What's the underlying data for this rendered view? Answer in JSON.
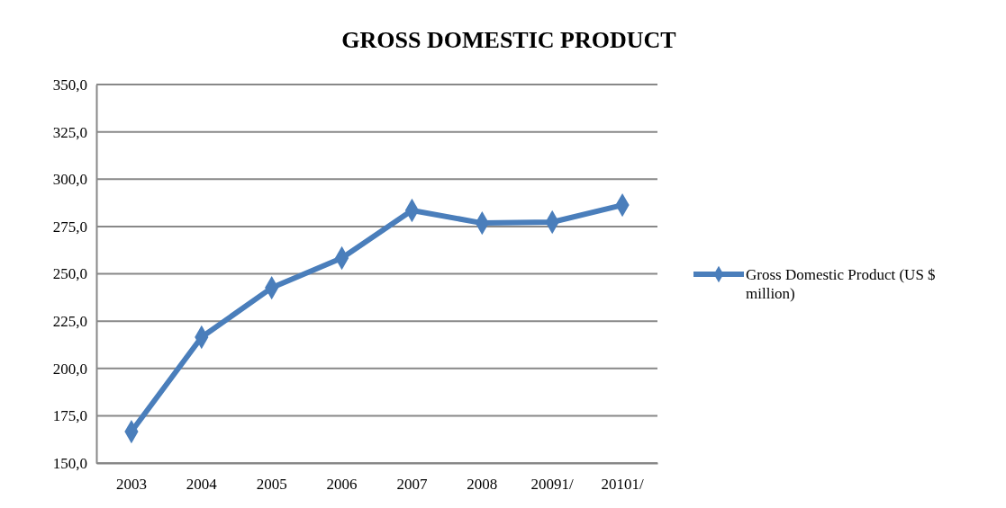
{
  "chart_data": {
    "type": "line",
    "title": "GROSS DOMESTIC PRODUCT",
    "categories": [
      "2003",
      "2004",
      "2005",
      "2006",
      "2007",
      "2008",
      "20091/",
      "20101/"
    ],
    "series": [
      {
        "name": "Gross Domestic Product (US $ million)",
        "color": "#4a7ebb",
        "values": [
          166.6,
          216.5,
          242.6,
          258.3,
          283.5,
          276.8,
          277.3,
          286.3
        ]
      }
    ],
    "ylim": [
      150,
      350
    ],
    "yticks": [
      {
        "value": 150,
        "label": "150,0"
      },
      {
        "value": 175,
        "label": "175,0"
      },
      {
        "value": 200,
        "label": "200,0"
      },
      {
        "value": 225,
        "label": "225,0"
      },
      {
        "value": 250,
        "label": "250,0"
      },
      {
        "value": 275,
        "label": "275,0"
      },
      {
        "value": 300,
        "label": "300,0"
      },
      {
        "value": 325,
        "label": "325,0"
      },
      {
        "value": 350,
        "label": "350,0"
      }
    ],
    "grid": "y",
    "legend": "right",
    "marker": "diamond",
    "line_style": "solid"
  }
}
